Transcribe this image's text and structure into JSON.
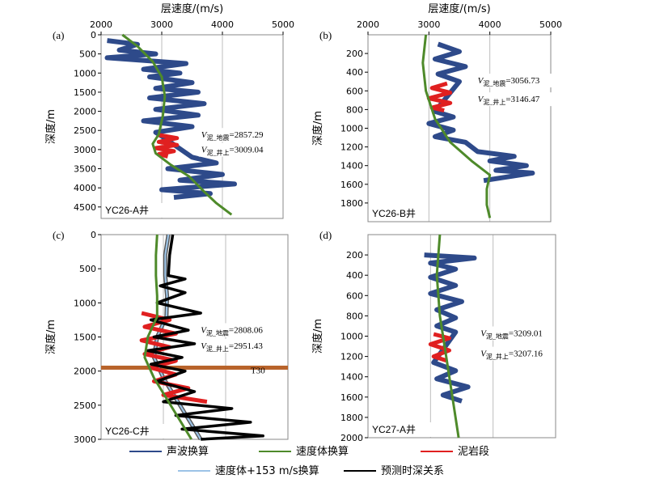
{
  "chart_data": [
    {
      "id": "a",
      "panel_label": "(a)",
      "well": "YC26-A井",
      "type": "line",
      "xlabel": "层速度/(m/s)",
      "ylabel": "深度/m",
      "xlim": [
        2000,
        5000
      ],
      "ylim": [
        0,
        4800
      ],
      "xticks": [
        2000,
        3000,
        4000,
        5000
      ],
      "yticks": [
        0,
        500,
        1000,
        1500,
        2000,
        2500,
        3000,
        3500,
        4000,
        4500
      ],
      "x_axis_position": "top",
      "grid": true,
      "annotations": [
        {
          "symbol": "V",
          "subscript": "泥_地震",
          "value": "=2857.29",
          "near": [
            3650,
            2690
          ]
        },
        {
          "symbol": "V",
          "subscript": "泥_井上",
          "value": "=3009.04",
          "near": [
            3650,
            3080
          ]
        }
      ],
      "series": [
        {
          "role": "sonic",
          "points": [
            [
              2100,
              150
            ],
            [
              2600,
              250
            ],
            [
              2300,
              400
            ],
            [
              2900,
              500
            ],
            [
              2100,
              600
            ],
            [
              3400,
              750
            ],
            [
              2700,
              900
            ],
            [
              3300,
              1000
            ],
            [
              2800,
              1100
            ],
            [
              3500,
              1250
            ],
            [
              2900,
              1400
            ],
            [
              3600,
              1500
            ],
            [
              2800,
              1650
            ],
            [
              3700,
              1800
            ],
            [
              2900,
              1950
            ],
            [
              3600,
              2100
            ],
            [
              2700,
              2250
            ],
            [
              3500,
              2400
            ],
            [
              2900,
              2550
            ],
            [
              3000,
              2650
            ],
            [
              3500,
              3200
            ],
            [
              3900,
              3350
            ],
            [
              3100,
              3500
            ],
            [
              4000,
              3650
            ],
            [
              3300,
              3800
            ],
            [
              4200,
              3900
            ],
            [
              3000,
              4050
            ],
            [
              3800,
              4150
            ],
            [
              3200,
              4250
            ]
          ]
        },
        {
          "role": "velocity_model",
          "points": [
            [
              2350,
              0
            ],
            [
              2600,
              300
            ],
            [
              2850,
              700
            ],
            [
              3000,
              1100
            ],
            [
              3050,
              1600
            ],
            [
              3020,
              2100
            ],
            [
              2950,
              2600
            ],
            [
              2850,
              2850
            ],
            [
              2900,
              3100
            ],
            [
              3150,
              3400
            ],
            [
              3450,
              3700
            ],
            [
              3700,
              4100
            ],
            [
              3900,
              4400
            ],
            [
              4150,
              4700
            ]
          ]
        },
        {
          "role": "mudstone",
          "points": [
            [
              2950,
              2620
            ],
            [
              3250,
              2700
            ],
            [
              2950,
              2800
            ],
            [
              3250,
              2880
            ],
            [
              2900,
              2960
            ],
            [
              3200,
              3040
            ],
            [
              2950,
              3120
            ],
            [
              3100,
              3180
            ]
          ]
        }
      ]
    },
    {
      "id": "b",
      "panel_label": "(b)",
      "well": "YC26-B井",
      "type": "line",
      "xlabel": "层速度/(m/s)",
      "ylabel": "深度/m",
      "xlim": [
        2000,
        5000
      ],
      "ylim": [
        0,
        2000
      ],
      "xticks": [
        2000,
        3000,
        4000,
        5000
      ],
      "yticks": [
        200,
        400,
        600,
        800,
        1000,
        1200,
        1400,
        1600,
        1800
      ],
      "x_axis_position": "top",
      "grid": true,
      "annotations": [
        {
          "symbol": "V",
          "subscript": "泥_地震",
          "value": "=3056.73",
          "near": [
            3800,
            520
          ]
        },
        {
          "symbol": "V",
          "subscript": "泥_井上",
          "value": "=3146.47",
          "near": [
            3800,
            720
          ]
        }
      ],
      "series": [
        {
          "role": "sonic",
          "points": [
            [
              3150,
              100
            ],
            [
              3500,
              180
            ],
            [
              3100,
              260
            ],
            [
              3600,
              340
            ],
            [
              3150,
              420
            ],
            [
              3500,
              500
            ],
            [
              3100,
              820
            ],
            [
              3400,
              880
            ],
            [
              3000,
              950
            ],
            [
              3400,
              1020
            ],
            [
              3100,
              1090
            ],
            [
              3600,
              1150
            ],
            [
              3800,
              1250
            ],
            [
              4400,
              1300
            ],
            [
              4000,
              1350
            ],
            [
              4600,
              1400
            ],
            [
              4100,
              1450
            ],
            [
              4700,
              1480
            ],
            [
              4200,
              1530
            ],
            [
              3900,
              1560
            ]
          ]
        },
        {
          "role": "velocity_model",
          "points": [
            [
              2950,
              0
            ],
            [
              2900,
              300
            ],
            [
              2950,
              600
            ],
            [
              3100,
              900
            ],
            [
              3350,
              1150
            ],
            [
              3700,
              1350
            ],
            [
              4000,
              1500
            ],
            [
              3950,
              1650
            ],
            [
              3950,
              1820
            ],
            [
              4000,
              1960
            ]
          ]
        },
        {
          "role": "mudstone",
          "points": [
            [
              3300,
              520
            ],
            [
              3050,
              570
            ],
            [
              3350,
              620
            ],
            [
              3000,
              680
            ],
            [
              3350,
              730
            ],
            [
              3050,
              780
            ],
            [
              3250,
              810
            ]
          ]
        }
      ]
    },
    {
      "id": "c",
      "panel_label": "(c)",
      "well": "YC26-C井",
      "type": "line",
      "xlabel": "",
      "ylabel": "深度/m",
      "xlim": [
        2000,
        5000
      ],
      "ylim": [
        0,
        3000
      ],
      "xticks": [],
      "yticks": [
        0,
        500,
        1000,
        1500,
        2000,
        2500,
        3000
      ],
      "grid": true,
      "horizon": {
        "label": "T30",
        "depth": 1950
      },
      "annotations": [
        {
          "symbol": "V",
          "subscript": "泥_地震",
          "value": "=2808.06",
          "near": [
            3600,
            1440
          ]
        },
        {
          "symbol": "V",
          "subscript": "泥_井上",
          "value": "=2951.43",
          "near": [
            3600,
            1670
          ]
        }
      ],
      "series": [
        {
          "role": "velocity_plus_153",
          "points": [
            [
              3080,
              0
            ],
            [
              3030,
              300
            ],
            [
              3030,
              600
            ],
            [
              3060,
              900
            ],
            [
              3050,
              1200
            ],
            [
              2900,
              1500
            ],
            [
              2850,
              1800
            ],
            [
              3000,
              2100
            ],
            [
              3200,
              2400
            ],
            [
              3400,
              2700
            ],
            [
              3600,
              3000
            ]
          ]
        },
        {
          "role": "velocity_model",
          "points": [
            [
              2900,
              0
            ],
            [
              2880,
              300
            ],
            [
              2880,
              600
            ],
            [
              2900,
              900
            ],
            [
              2900,
              1200
            ],
            [
              2750,
              1500
            ],
            [
              2700,
              1800
            ],
            [
              2850,
              2100
            ],
            [
              3050,
              2400
            ],
            [
              3250,
              2700
            ],
            [
              3450,
              3000
            ]
          ]
        },
        {
          "role": "prediction",
          "points": [
            [
              3150,
              0
            ],
            [
              3100,
              300
            ],
            [
              3080,
              600
            ],
            [
              3350,
              650
            ],
            [
              2950,
              750
            ],
            [
              3350,
              850
            ],
            [
              2900,
              1000
            ],
            [
              3600,
              1150
            ],
            [
              2800,
              1250
            ],
            [
              3400,
              1400
            ],
            [
              2850,
              1500
            ],
            [
              3500,
              1600
            ],
            [
              2750,
              1700
            ],
            [
              3300,
              1800
            ],
            [
              2800,
              1900
            ],
            [
              3350,
              2000
            ],
            [
              2900,
              2150
            ],
            [
              3500,
              2300
            ],
            [
              3000,
              2450
            ],
            [
              4100,
              2550
            ],
            [
              3200,
              2650
            ],
            [
              4400,
              2750
            ],
            [
              3300,
              2850
            ],
            [
              4600,
              2950
            ],
            [
              3600,
              3000
            ]
          ]
        },
        {
          "role": "mudstone",
          "points": [
            [
              2650,
              1150
            ],
            [
              3100,
              1250
            ],
            [
              2700,
              1350
            ],
            [
              3200,
              1450
            ],
            [
              2650,
              1550
            ],
            [
              3100,
              1650
            ],
            [
              2700,
              1750
            ],
            [
              3200,
              1850
            ],
            [
              2800,
              1950
            ],
            [
              3200,
              2050
            ],
            [
              2850,
              2150
            ],
            [
              3400,
              2250
            ],
            [
              3000,
              2350
            ],
            [
              3700,
              2450
            ]
          ]
        }
      ]
    },
    {
      "id": "d",
      "panel_label": "(d)",
      "well": "YC27-A井",
      "type": "line",
      "xlabel": "",
      "ylabel": "深度/m",
      "xlim": [
        2000,
        5000
      ],
      "ylim": [
        0,
        2000
      ],
      "xticks": [],
      "yticks": [
        200,
        400,
        600,
        800,
        1000,
        1200,
        1400,
        1600,
        1800,
        2000
      ],
      "grid": true,
      "annotations": [
        {
          "symbol": "V",
          "subscript": "泥_地震",
          "value": "=3209.01",
          "near": [
            3800,
            1000
          ]
        },
        {
          "symbol": "V",
          "subscript": "泥_井上",
          "value": "=3207.16",
          "near": [
            3800,
            1200
          ]
        }
      ],
      "series": [
        {
          "role": "sonic",
          "points": [
            [
              2900,
              200
            ],
            [
              3700,
              230
            ],
            [
              3000,
              280
            ],
            [
              3400,
              340
            ],
            [
              3000,
              420
            ],
            [
              3400,
              500
            ],
            [
              3000,
              580
            ],
            [
              3500,
              660
            ],
            [
              3100,
              740
            ],
            [
              3400,
              820
            ],
            [
              3100,
              900
            ],
            [
              3400,
              960
            ],
            [
              3050,
              1260
            ],
            [
              3400,
              1340
            ],
            [
              3100,
              1420
            ],
            [
              3600,
              1500
            ],
            [
              3200,
              1580
            ],
            [
              3500,
              1640
            ]
          ]
        },
        {
          "role": "velocity_model",
          "points": [
            [
              3150,
              0
            ],
            [
              3100,
              400
            ],
            [
              3150,
              800
            ],
            [
              3250,
              1200
            ],
            [
              3350,
              1600
            ],
            [
              3450,
              2000
            ]
          ]
        },
        {
          "role": "mudstone",
          "points": [
            [
              3050,
              980
            ],
            [
              3300,
              1020
            ],
            [
              3000,
              1080
            ],
            [
              3300,
              1140
            ],
            [
              3050,
              1200
            ],
            [
              3250,
              1240
            ]
          ]
        }
      ]
    }
  ],
  "legend": {
    "items": [
      {
        "key": "sonic",
        "label": "声波换算",
        "color": "#2e4a8a"
      },
      {
        "key": "velocity_model",
        "label": "速度体换算",
        "color": "#4e8a2a"
      },
      {
        "key": "mudstone",
        "label": "泥岩段",
        "color": "#e02020"
      },
      {
        "key": "velocity_plus_153",
        "label": "速度体+153 m/s换算",
        "color": "#9cc3e6"
      },
      {
        "key": "prediction",
        "label": "预测时深关系",
        "color": "#000000"
      }
    ]
  },
  "colors": {
    "sonic": "#2e4a8a",
    "velocity_model": "#4e8a2a",
    "mudstone": "#e02020",
    "velocity_plus_153": "#9cc3e6",
    "velocity_plus_153_outline": "#555555",
    "prediction": "#000000",
    "horizon": "#b8632a",
    "grid": "#bdbdbd",
    "frame": "#888888"
  }
}
